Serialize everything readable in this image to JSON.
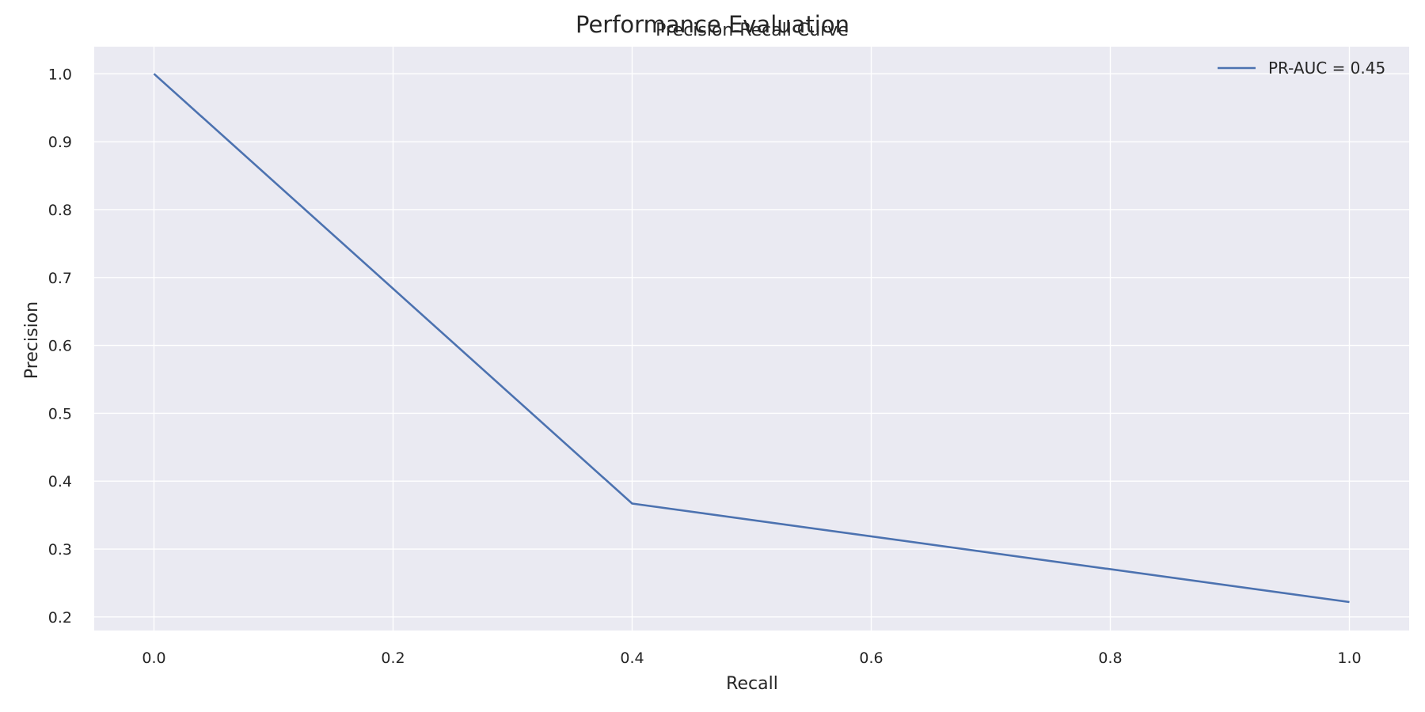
{
  "figure": {
    "suptitle": "Performance Evaluation"
  },
  "chart_data": {
    "type": "line",
    "title": "Precision-Recall Curve",
    "xlabel": "Recall",
    "ylabel": "Precision",
    "xlim": [
      -0.05,
      1.05
    ],
    "ylim": [
      0.18,
      1.04
    ],
    "xticks": [
      0.0,
      0.2,
      0.4,
      0.6,
      0.8,
      1.0
    ],
    "xtick_labels": [
      "0.0",
      "0.2",
      "0.4",
      "0.6",
      "0.8",
      "1.0"
    ],
    "yticks": [
      0.2,
      0.3,
      0.4,
      0.5,
      0.6,
      0.7,
      0.8,
      0.9,
      1.0
    ],
    "ytick_labels": [
      "0.2",
      "0.3",
      "0.4",
      "0.5",
      "0.6",
      "0.7",
      "0.8",
      "0.9",
      "1.0"
    ],
    "grid": true,
    "legend_position": "top-right",
    "series": [
      {
        "name": "PR-AUC = 0.45",
        "color": "#4c72b0",
        "x": [
          0.0,
          0.4,
          1.0
        ],
        "y": [
          1.0,
          0.367,
          0.222
        ]
      }
    ],
    "colors": {
      "plot_background": "#eaeaf2",
      "grid": "#ffffff",
      "text": "#262626"
    }
  }
}
